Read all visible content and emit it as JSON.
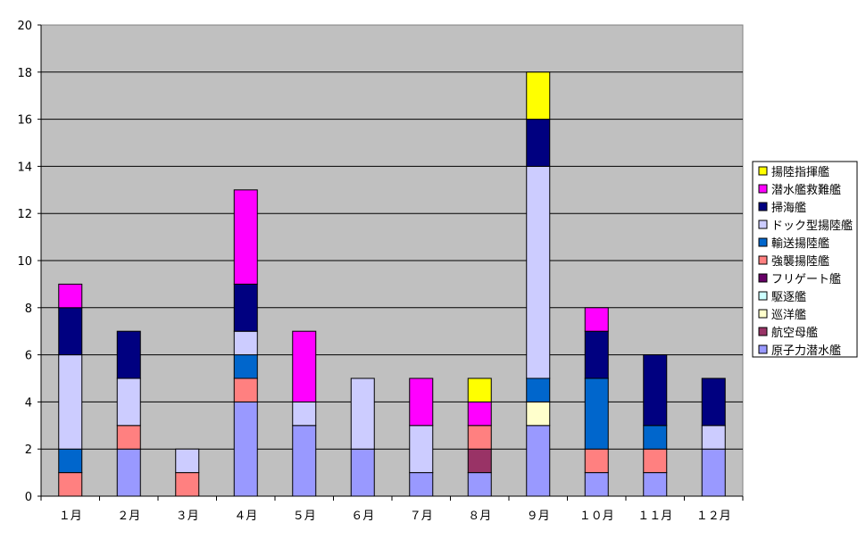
{
  "chart_data": {
    "type": "bar",
    "stacked": true,
    "title": "",
    "xlabel": "",
    "ylabel": "",
    "ylim": [
      0,
      20
    ],
    "yticks": [
      0,
      2,
      4,
      6,
      8,
      10,
      12,
      14,
      16,
      18,
      20
    ],
    "grid": true,
    "legend_position": "right",
    "plot_background": "#c0c0c0",
    "categories": [
      "１月",
      "２月",
      "３月",
      "４月",
      "５月",
      "６月",
      "７月",
      "８月",
      "９月",
      "１０月",
      "１１月",
      "１２月"
    ],
    "series": [
      {
        "name": "原子力潜水艦",
        "color": "#9999ff",
        "values": [
          0,
          2,
          0,
          4,
          3,
          2,
          1,
          1,
          3,
          1,
          1,
          2
        ]
      },
      {
        "name": "航空母艦",
        "color": "#993366",
        "values": [
          0,
          0,
          0,
          0,
          0,
          0,
          0,
          1,
          0,
          0,
          0,
          0
        ]
      },
      {
        "name": "巡洋艦",
        "color": "#ffffcc",
        "values": [
          0,
          0,
          0,
          0,
          0,
          0,
          0,
          0,
          1,
          0,
          0,
          0
        ]
      },
      {
        "name": "駆逐艦",
        "color": "#ccffff",
        "values": [
          0,
          0,
          0,
          0,
          0,
          0,
          0,
          0,
          0,
          0,
          0,
          0
        ]
      },
      {
        "name": "フリゲート艦",
        "color": "#660066",
        "values": [
          0,
          0,
          0,
          0,
          0,
          0,
          0,
          0,
          0,
          0,
          0,
          0
        ]
      },
      {
        "name": "強襲揚陸艦",
        "color": "#ff8080",
        "values": [
          1,
          1,
          1,
          1,
          0,
          0,
          0,
          1,
          0,
          1,
          1,
          0
        ]
      },
      {
        "name": "輸送揚陸艦",
        "color": "#0066cc",
        "values": [
          1,
          0,
          0,
          1,
          0,
          0,
          0,
          0,
          1,
          3,
          1,
          0
        ]
      },
      {
        "name": "ドック型揚陸艦",
        "color": "#ccccff",
        "values": [
          4,
          2,
          1,
          1,
          1,
          3,
          2,
          0,
          9,
          0,
          0,
          1
        ]
      },
      {
        "name": "掃海艦",
        "color": "#000080",
        "values": [
          2,
          2,
          0,
          2,
          0,
          0,
          0,
          0,
          2,
          2,
          3,
          2
        ]
      },
      {
        "name": "潜水艦救難艦",
        "color": "#ff00ff",
        "values": [
          1,
          0,
          0,
          4,
          3,
          0,
          2,
          1,
          0,
          1,
          0,
          0
        ]
      },
      {
        "name": "揚陸指揮艦",
        "color": "#ffff00",
        "values": [
          0,
          0,
          0,
          0,
          0,
          0,
          0,
          1,
          2,
          0,
          0,
          0
        ]
      }
    ]
  }
}
